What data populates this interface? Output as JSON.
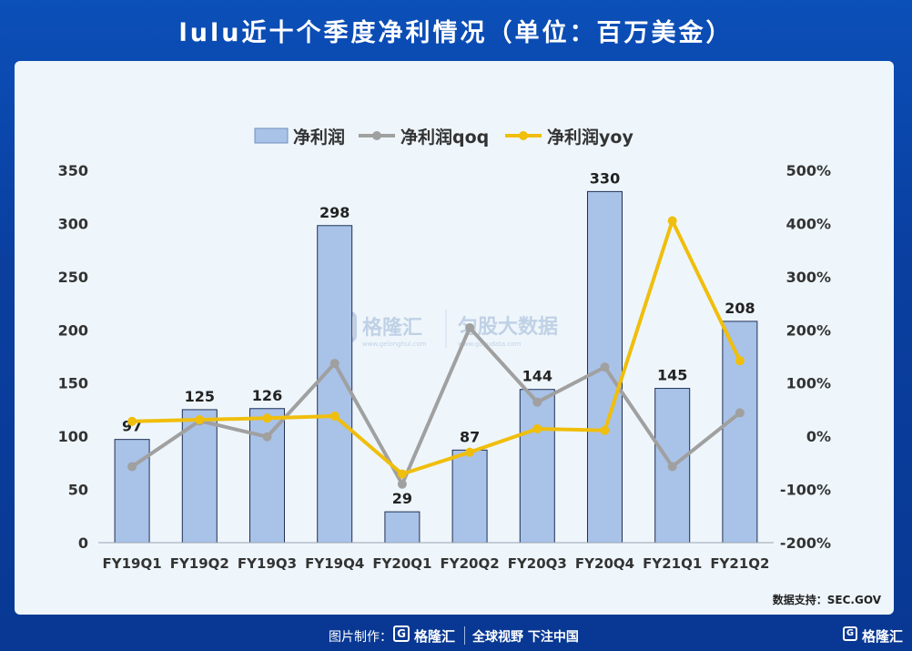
{
  "page": {
    "title": "lulu近十个季度净利情况（单位：百万美金）"
  },
  "source_label": "数据支持：SEC.GOV",
  "watermark": {
    "brand": "格隆汇",
    "brand_url": "www.gelonghui.com",
    "brand2": "匀股大数据",
    "brand2_url": "www.gogudata.com",
    "logo_letter": "G"
  },
  "footer": {
    "made_by": "图片制作：",
    "logo_letter": "G",
    "logo_text": "格隆汇",
    "slogan": "全球视野 下注中国",
    "corner_text": "格隆汇"
  },
  "chart_data": {
    "type": "bar",
    "title": "lulu近十个季度净利情况（单位：百万美金）",
    "categories": [
      "FY19Q1",
      "FY19Q2",
      "FY19Q3",
      "FY19Q4",
      "FY20Q1",
      "FY20Q2",
      "FY20Q3",
      "FY20Q4",
      "FY21Q1",
      "FY21Q2"
    ],
    "y_left": {
      "min": 0,
      "max": 350,
      "step": 50,
      "ticks": [
        "0",
        "50",
        "100",
        "150",
        "200",
        "250",
        "300",
        "350"
      ]
    },
    "y_right": {
      "min": -200,
      "max": 500,
      "step": 100,
      "ticks": [
        "-200%",
        "-100%",
        "0%",
        "100%",
        "200%",
        "300%",
        "400%",
        "500%"
      ]
    },
    "series": [
      {
        "name": "净利润",
        "kind": "bar",
        "axis": "left",
        "color": "#a9c2e8",
        "values": [
          97,
          125,
          126,
          298,
          29,
          87,
          144,
          330,
          145,
          208
        ],
        "labels": [
          "97",
          "125",
          "126",
          "298",
          "29",
          "87",
          "144",
          "330",
          "145",
          "208"
        ]
      },
      {
        "name": "净利润qoq",
        "kind": "line",
        "axis": "right",
        "color": "#a0a0a0",
        "values": [
          -57,
          29,
          -1,
          137,
          -90,
          204,
          64,
          130,
          -57,
          44
        ]
      },
      {
        "name": "净利润yoy",
        "kind": "line",
        "axis": "right",
        "color": "#f0be0c",
        "values": [
          28,
          31,
          34,
          38,
          -71,
          -30,
          14,
          11,
          405,
          142
        ]
      }
    ],
    "legend": [
      "净利润",
      "净利润qoq",
      "净利润yoy"
    ]
  }
}
